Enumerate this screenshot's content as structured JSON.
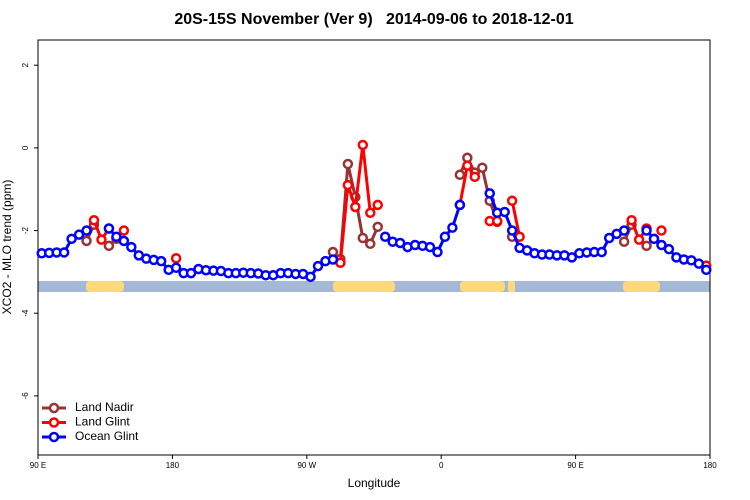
{
  "chart_data": {
    "type": "line",
    "title": "20S-15S November (Ver 9)   2014-09-06 to 2018-12-01",
    "x_label": "Longitude",
    "y_label": "XCO2 - MLO trend (ppm)",
    "xlim": [
      90,
      540
    ],
    "xticks": [
      {
        "value": 90,
        "label": "90 E"
      },
      180,
      {
        "value": 270,
        "label": "90 W"
      },
      {
        "value": 360,
        "label": "0"
      },
      {
        "value": 450,
        "label": "90 E"
      },
      {
        "value": 540,
        "label": "180"
      }
    ],
    "ylim": [
      -7.43,
      2.61
    ],
    "yticks": [
      2,
      0,
      -2,
      -4,
      -6
    ],
    "legend": "bottom-left",
    "x": [
      92.5,
      97.5,
      102.5,
      107.5,
      112.5,
      117.5,
      122.5,
      127.5,
      132.5,
      137.5,
      142.5,
      147.5,
      152.5,
      157.5,
      162.5,
      167.5,
      172.5,
      177.5,
      182.5,
      187.5,
      192.5,
      197.5,
      202.5,
      207.5,
      212.5,
      217.5,
      222.5,
      227.5,
      232.5,
      237.5,
      242.5,
      247.5,
      252.5,
      257.5,
      262.5,
      267.5,
      272.5,
      277.5,
      282.5,
      287.5,
      292.5,
      297.5,
      302.5,
      307.5,
      312.5,
      317.5,
      322.5,
      327.5,
      332.5,
      337.5,
      342.5,
      347.5,
      352.5,
      357.5,
      362.5,
      367.5,
      372.5,
      377.5,
      382.5,
      387.5,
      392.5,
      397.5,
      402.5,
      407.5,
      412.5,
      417.5,
      422.5,
      427.5,
      432.5,
      437.5,
      442.5,
      447.5,
      452.5,
      457.5,
      462.5,
      467.5,
      472.5,
      477.5,
      482.5,
      487.5,
      492.5,
      497.5,
      502.5,
      507.5,
      512.5,
      517.5,
      522.5,
      527.5,
      532.5,
      537.5
    ],
    "series": [
      {
        "name": "Land Nadir",
        "color": "#993333",
        "values": [
          null,
          null,
          null,
          null,
          null,
          null,
          -2.25,
          -1.86,
          null,
          -2.37,
          -2.2,
          null,
          null,
          null,
          null,
          null,
          null,
          null,
          null,
          null,
          null,
          null,
          null,
          null,
          null,
          null,
          null,
          null,
          null,
          null,
          null,
          null,
          null,
          null,
          null,
          null,
          null,
          null,
          null,
          -2.52,
          -2.69,
          -0.39,
          -1.19,
          -2.18,
          -2.32,
          -1.91,
          null,
          null,
          null,
          null,
          null,
          null,
          null,
          null,
          null,
          null,
          -0.65,
          -0.24,
          -0.6,
          -0.48,
          -1.28,
          -1.79,
          null,
          -2.15,
          null,
          null,
          null,
          null,
          null,
          null,
          null,
          null,
          null,
          null,
          null,
          null,
          null,
          null,
          -2.27,
          -1.86,
          null,
          -2.37,
          -2.2,
          null,
          null,
          null,
          null,
          null,
          null,
          null
        ]
      },
      {
        "name": "Land Glint",
        "color": "#ff0000",
        "values": [
          null,
          null,
          null,
          null,
          null,
          null,
          null,
          -1.75,
          -2.22,
          -1.95,
          null,
          -2.0,
          null,
          null,
          null,
          null,
          null,
          null,
          -2.67,
          null,
          null,
          null,
          null,
          null,
          null,
          null,
          null,
          null,
          null,
          null,
          null,
          null,
          null,
          null,
          null,
          null,
          null,
          null,
          null,
          null,
          -2.78,
          -0.9,
          -1.43,
          0.07,
          -1.57,
          -1.38,
          null,
          null,
          null,
          null,
          null,
          null,
          null,
          null,
          null,
          null,
          -1.38,
          -0.43,
          -0.7,
          null,
          -1.77,
          -1.77,
          null,
          -1.28,
          -2.15,
          null,
          null,
          null,
          null,
          null,
          null,
          null,
          null,
          null,
          null,
          null,
          null,
          null,
          null,
          -1.75,
          -2.22,
          -1.95,
          null,
          -2.0,
          null,
          null,
          null,
          null,
          null,
          -2.85
        ]
      },
      {
        "name": "Ocean Glint",
        "color": "#0000ff",
        "values": [
          -2.55,
          -2.54,
          -2.53,
          -2.53,
          -2.2,
          -2.1,
          -2.0,
          null,
          null,
          -1.95,
          -2.15,
          -2.25,
          -2.4,
          -2.6,
          -2.68,
          -2.71,
          -2.74,
          -2.95,
          -2.9,
          -3.03,
          -3.03,
          -2.93,
          -2.96,
          -2.97,
          -2.98,
          -3.03,
          -3.03,
          -3.02,
          -3.03,
          -3.04,
          -3.08,
          -3.08,
          -3.03,
          -3.03,
          -3.05,
          -3.05,
          -3.12,
          -2.86,
          -2.74,
          -2.7,
          null,
          null,
          null,
          null,
          null,
          null,
          -2.15,
          -2.27,
          -2.3,
          -2.4,
          -2.35,
          -2.37,
          -2.4,
          -2.52,
          -2.15,
          -1.93,
          -1.38,
          null,
          null,
          null,
          -1.1,
          -1.57,
          -1.55,
          -2.0,
          -2.42,
          -2.48,
          -2.55,
          -2.58,
          -2.58,
          -2.6,
          -2.6,
          -2.65,
          -2.55,
          -2.53,
          -2.52,
          -2.52,
          -2.18,
          -2.08,
          -2.0,
          null,
          null,
          -2.0,
          -2.2,
          -2.35,
          -2.45,
          -2.65,
          -2.7,
          -2.72,
          -2.8,
          -2.95
        ]
      }
    ]
  }
}
